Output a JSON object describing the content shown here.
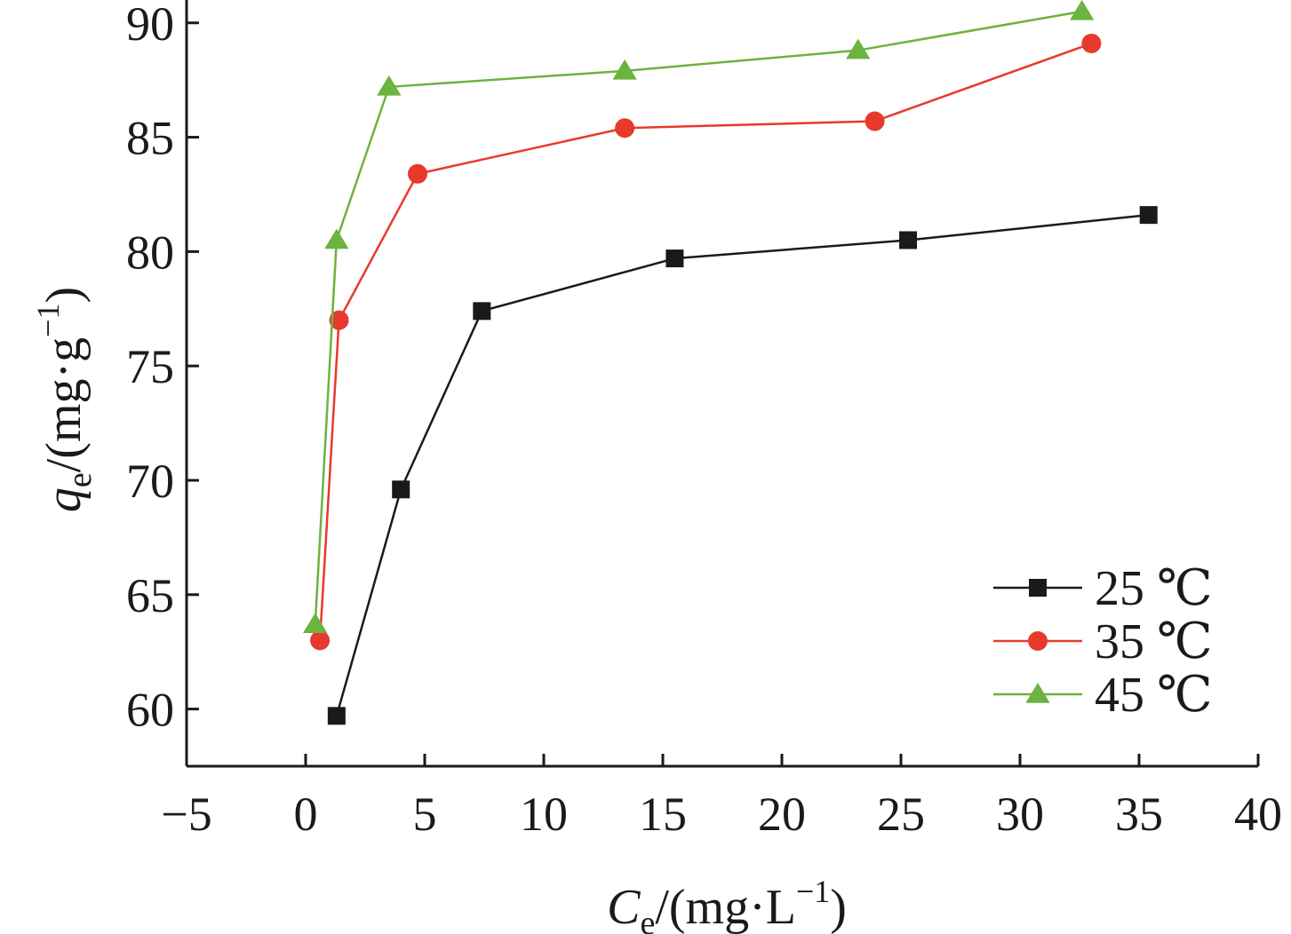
{
  "chart_data": {
    "type": "line",
    "xlim": [
      -5,
      40
    ],
    "ylim": [
      57.5,
      91
    ],
    "x_ticks": [
      -5,
      0,
      5,
      10,
      15,
      20,
      25,
      30,
      35,
      40
    ],
    "x_tick_labels": [
      "−5",
      "0",
      "5",
      "10",
      "15",
      "20",
      "25",
      "30",
      "35",
      "40"
    ],
    "y_ticks": [
      60,
      65,
      70,
      75,
      80,
      85,
      90
    ],
    "y_tick_labels": [
      "60",
      "65",
      "70",
      "75",
      "80",
      "85",
      "90"
    ],
    "xlabel": {
      "main": "C",
      "sub": "e",
      "rest": "/(mg·L",
      "sup": "−1",
      "end": ")"
    },
    "ylabel": {
      "main": "q",
      "sub": "e",
      "rest": "/(mg·g",
      "sup": "−1",
      "end": ")"
    },
    "grid": false,
    "legend_position": "bottom-right",
    "series": [
      {
        "name": "25 ℃",
        "color": "#1a1a1a",
        "marker": "square",
        "x": [
          1.3,
          4.0,
          7.4,
          15.5,
          25.3,
          35.4
        ],
        "y": [
          59.7,
          69.6,
          77.4,
          79.7,
          80.5,
          81.6
        ]
      },
      {
        "name": "35 ℃",
        "color": "#e8392d",
        "marker": "circle",
        "x": [
          0.6,
          1.4,
          4.7,
          13.4,
          23.9,
          33.0
        ],
        "y": [
          63.0,
          77.0,
          83.4,
          85.4,
          85.7,
          89.1
        ]
      },
      {
        "name": "45 ℃",
        "color": "#6db33f",
        "marker": "triangle",
        "x": [
          0.4,
          1.3,
          3.5,
          13.4,
          23.2,
          32.6
        ],
        "y": [
          63.7,
          80.5,
          87.2,
          87.9,
          88.8,
          90.5
        ]
      }
    ]
  }
}
